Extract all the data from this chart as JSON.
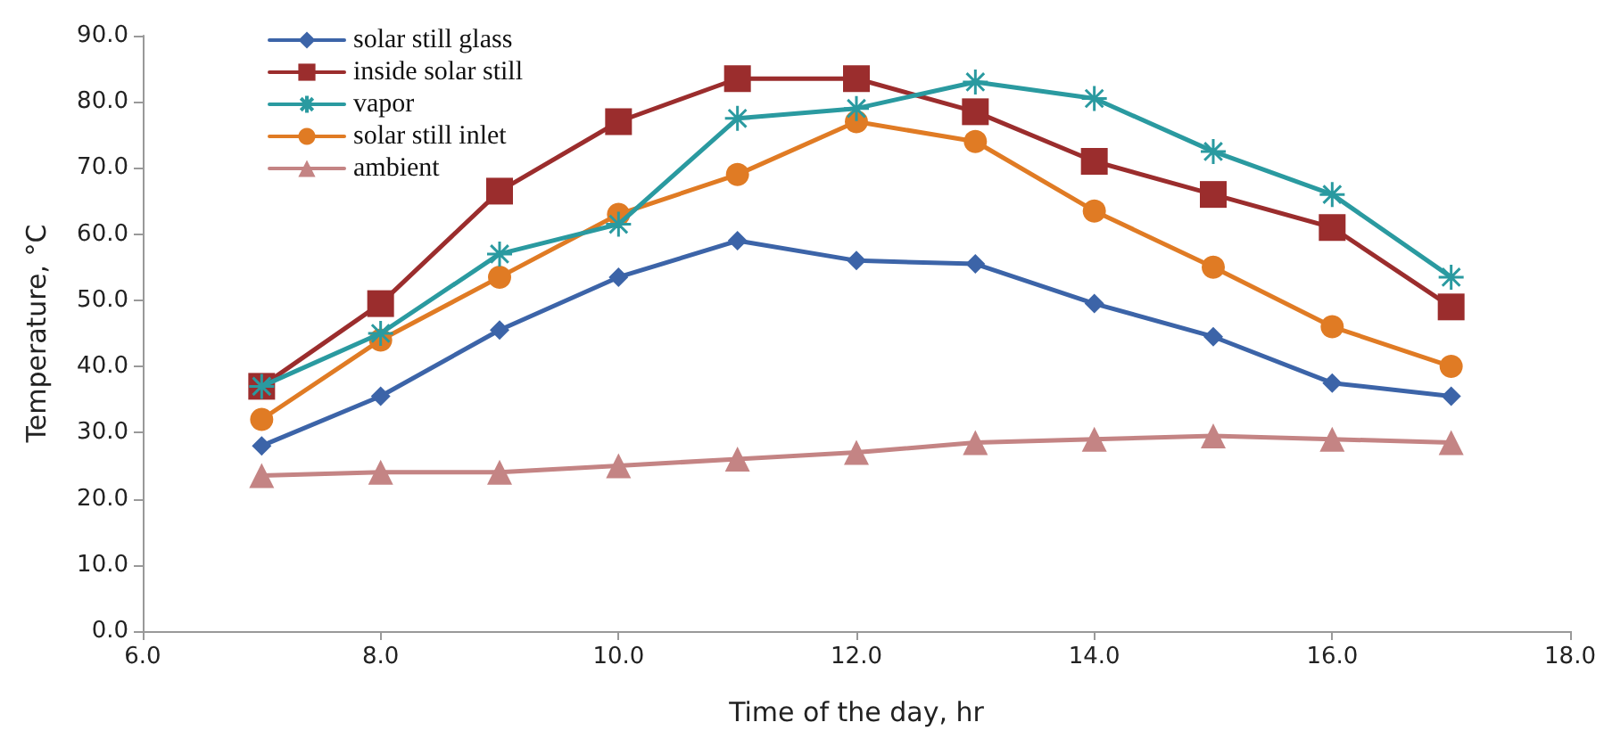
{
  "chart_data": {
    "type": "line",
    "xlabel": "Time of the day, hr",
    "ylabel": "Temperature, °C",
    "x": [
      7,
      8,
      9,
      10,
      11,
      12,
      13,
      14,
      15,
      16,
      17
    ],
    "series": [
      {
        "name": "solar still glass",
        "color": "#3c64a8",
        "marker": "diamond",
        "values": [
          28,
          35.5,
          45.5,
          53.5,
          59,
          56,
          55.5,
          49.5,
          44.5,
          37.5,
          35.5
        ]
      },
      {
        "name": "inside solar still",
        "color": "#9b2d2d",
        "marker": "square",
        "values": [
          37,
          49.5,
          66.5,
          77,
          83.5,
          83.5,
          78.5,
          71,
          66,
          61,
          49
        ]
      },
      {
        "name": "vapor",
        "color": "#2a9aa0",
        "marker": "cross",
        "values": [
          37,
          45,
          57,
          61.5,
          77.5,
          79,
          83,
          80.5,
          72.5,
          66,
          53.5
        ]
      },
      {
        "name": "solar still inlet",
        "color": "#e07b24",
        "marker": "circle",
        "values": [
          32,
          44,
          53.5,
          63,
          69,
          77,
          74,
          63.5,
          55,
          46,
          40
        ]
      },
      {
        "name": "ambient",
        "color": "#c48484",
        "marker": "triangle",
        "values": [
          23.5,
          24,
          24,
          25,
          26,
          27,
          28.5,
          29,
          29.5,
          29,
          28.5
        ]
      }
    ],
    "xlim": [
      6,
      18
    ],
    "xticks": [
      {
        "value": 6,
        "label": "6.0"
      },
      {
        "value": 8,
        "label": "8.0"
      },
      {
        "value": 10,
        "label": "10.0"
      },
      {
        "value": 12,
        "label": "12.0"
      },
      {
        "value": 14,
        "label": "14.0"
      },
      {
        "value": 16,
        "label": "16.0"
      },
      {
        "value": 18,
        "label": "18.0"
      }
    ],
    "ylim": [
      0,
      90
    ],
    "yticks": [
      {
        "value": 0,
        "label": "0.0"
      },
      {
        "value": 10,
        "label": "10.0"
      },
      {
        "value": 20,
        "label": "20.0"
      },
      {
        "value": 30,
        "label": "30.0"
      },
      {
        "value": 40,
        "label": "40.0"
      },
      {
        "value": 50,
        "label": "50.0"
      },
      {
        "value": 60,
        "label": "60.0"
      },
      {
        "value": 70,
        "label": "70.0"
      },
      {
        "value": 80,
        "label": "80.0"
      },
      {
        "value": 90,
        "label": "90.0"
      }
    ],
    "grid": false,
    "legend": "top left",
    "line_style": "solid"
  }
}
